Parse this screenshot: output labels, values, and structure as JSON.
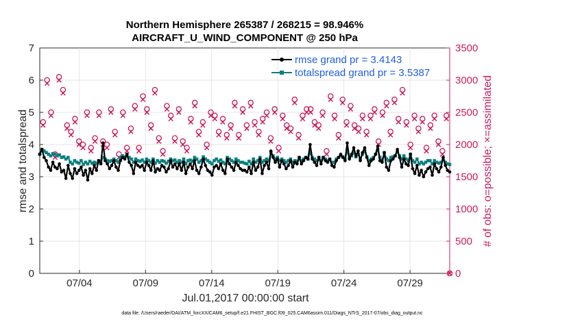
{
  "chart_data": {
    "type": "line",
    "title_line1": "Northern Hemisphere 265387 / 268215 = 98.946%",
    "title_line2": "AIRCRAFT_U_WIND_COMPONENT @ 250 hPa",
    "xlabel": "Jul.01,2017 00:00:00 start",
    "ylabel_left": "rmse and totalspread",
    "ylabel_right": "# of obs: o=possible; ×=assimilated",
    "footnote": "data file: /Users/raeder/DAI/ATM_forcXX/CAM6_setup/f.e21.FHIST_BGC.f09_025.CAM6assim.011/Diags_NTrS_2017-07/obs_diag_output.nc",
    "x_range_days": [
      0,
      31
    ],
    "x_ticks": [
      3,
      8,
      13,
      18,
      23,
      28
    ],
    "x_tick_labels": [
      "07/04",
      "07/09",
      "07/14",
      "07/19",
      "07/24",
      "07/29"
    ],
    "ylim_left": [
      0,
      7
    ],
    "y_ticks_left": [
      "0",
      "1",
      "2",
      "3",
      "4",
      "5",
      "6",
      "7"
    ],
    "ylim_right": [
      0,
      3500
    ],
    "y_ticks_right": [
      "0",
      "500",
      "1000",
      "1500",
      "2000",
      "2500",
      "3000",
      "3500"
    ],
    "series": [
      {
        "name": "rmse",
        "legend": "rmse grand pr = 3.4143",
        "color": "#000000",
        "axis": "left",
        "values": [
          3.7,
          3.85,
          3.6,
          3.5,
          3.3,
          3.2,
          3.45,
          3.3,
          3.25,
          3.4,
          3.15,
          3.2,
          2.95,
          3.35,
          3.1,
          2.95,
          3.25,
          3.1,
          3.2,
          3.3,
          3.05,
          3.2,
          2.9,
          3.25,
          3.1,
          3.35,
          3.2,
          3.5,
          3.4,
          4.05,
          3.5,
          3.4,
          3.25,
          3.35,
          3.5,
          3.3,
          3.2,
          3.5,
          3.6,
          3.55,
          3.7,
          3.45,
          3.35,
          3.1,
          3.45,
          3.35,
          3.3,
          3.35,
          3.2,
          3.45,
          3.35,
          3.2,
          3.5,
          3.15,
          3.25,
          3.2,
          3.35,
          3.3,
          3.15,
          3.25,
          3.5,
          3.3,
          3.4,
          3.25,
          3.4,
          3.2,
          3.45,
          3.1,
          3.3,
          3.4,
          3.25,
          3.5,
          3.2,
          3.1,
          3.3,
          3.55,
          3.35,
          3.2,
          3.15,
          3.05,
          3.3,
          3.35,
          3.25,
          3.4,
          3.2,
          3.1,
          3.55,
          3.4,
          3.3,
          3.2,
          3.45,
          3.35,
          3.25,
          3.2,
          3.2,
          3.15,
          3.3,
          3.1,
          3.45,
          3.2,
          3.3,
          3.55,
          3.1,
          3.35,
          3.45,
          3.25,
          3.8,
          3.6,
          3.45,
          3.55,
          3.3,
          3.5,
          3.4,
          3.25,
          3.35,
          3.5,
          3.3,
          3.45,
          3.4,
          3.6,
          3.4,
          3.5,
          3.6,
          3.55,
          4.0,
          3.55,
          3.45,
          3.35,
          3.6,
          3.4,
          3.6,
          3.5,
          3.45,
          3.55,
          3.35,
          3.3,
          3.5,
          3.6,
          3.7,
          3.6,
          3.5,
          4.05,
          3.55,
          3.7,
          3.9,
          3.65,
          3.8,
          3.5,
          3.75,
          3.9,
          3.6,
          3.35,
          3.5,
          3.55,
          3.7,
          3.95,
          3.5,
          3.45,
          3.75,
          3.3,
          3.2,
          3.5,
          3.55,
          3.65,
          3.85,
          3.6,
          3.3,
          3.55,
          3.4,
          3.35,
          3.7,
          3.25,
          3.1,
          3.35,
          3.05,
          3.2,
          3.0,
          3.15,
          3.25,
          3.3,
          3.05,
          3.4,
          3.25,
          3.15,
          3.3,
          3.6,
          3.35,
          3.2,
          3.15
        ]
      },
      {
        "name": "totalspread",
        "legend": "totalspread grand pr = 3.5387",
        "color": "#0b7f7f",
        "axis": "left",
        "values": [
          3.7,
          3.85,
          3.8,
          3.75,
          3.7,
          3.65,
          3.72,
          3.7,
          3.65,
          3.68,
          3.6,
          3.62,
          3.55,
          3.6,
          3.45,
          3.4,
          3.5,
          3.45,
          3.42,
          3.5,
          3.38,
          3.45,
          3.4,
          3.48,
          3.42,
          3.45,
          3.42,
          3.5,
          3.45,
          3.6,
          3.55,
          3.5,
          3.48,
          3.5,
          3.55,
          3.5,
          3.45,
          3.6,
          3.65,
          3.62,
          3.65,
          3.6,
          3.55,
          3.45,
          3.55,
          3.5,
          3.48,
          3.52,
          3.45,
          3.55,
          3.5,
          3.45,
          3.55,
          3.42,
          3.5,
          3.45,
          3.5,
          3.48,
          3.42,
          3.48,
          3.55,
          3.5,
          3.52,
          3.45,
          3.5,
          3.45,
          3.55,
          3.4,
          3.5,
          3.52,
          3.48,
          3.6,
          3.55,
          3.45,
          3.5,
          3.62,
          3.55,
          3.5,
          3.45,
          3.4,
          3.5,
          3.55,
          3.48,
          3.52,
          3.45,
          3.4,
          3.6,
          3.55,
          3.5,
          3.45,
          3.55,
          3.5,
          3.45,
          3.45,
          3.42,
          3.4,
          3.48,
          3.4,
          3.55,
          3.45,
          3.5,
          3.6,
          3.45,
          3.5,
          3.55,
          3.5,
          3.75,
          3.65,
          3.55,
          3.6,
          3.5,
          3.55,
          3.5,
          3.45,
          3.5,
          3.55,
          3.45,
          3.5,
          3.48,
          3.6,
          3.5,
          3.55,
          3.6,
          3.55,
          3.75,
          3.6,
          3.55,
          3.5,
          3.6,
          3.5,
          3.6,
          3.55,
          3.5,
          3.55,
          3.45,
          3.45,
          3.55,
          3.6,
          3.65,
          3.62,
          3.55,
          3.8,
          3.6,
          3.65,
          3.75,
          3.62,
          3.7,
          3.55,
          3.7,
          3.8,
          3.62,
          3.5,
          3.55,
          3.6,
          3.7,
          3.85,
          3.6,
          3.5,
          3.75,
          3.55,
          3.5,
          3.6,
          3.62,
          3.65,
          3.78,
          3.65,
          3.55,
          3.65,
          3.55,
          3.5,
          3.7,
          3.5,
          3.45,
          3.55,
          3.4,
          3.45,
          3.4,
          3.45,
          3.5,
          3.5,
          3.4,
          3.5,
          3.45,
          3.42,
          3.45,
          3.55,
          3.45,
          3.4,
          3.38
        ]
      },
      {
        "name": "possible",
        "legend": "",
        "color": "#cc1a5c",
        "axis": "right",
        "marker": "o",
        "values": [
          2350,
          3000,
          2500,
          1850,
          3050,
          2850,
          2300,
          2200,
          2400,
          2050,
          2000,
          2500,
          1950,
          2100,
          2500,
          2050,
          2000,
          2550,
          2200,
          1850,
          2500,
          1950,
          2250,
          2600,
          1950,
          2750,
          2550,
          2300,
          2850,
          2100,
          1900,
          2600,
          2450,
          2100,
          2550,
          2050,
          1950,
          2400,
          2650,
          2200,
          2350,
          2000,
          2500,
          2450,
          2200,
          2400,
          2150,
          2300,
          2650,
          2150,
          2550,
          2300,
          2650,
          2350,
          2200,
          2400,
          2500,
          2100,
          2550,
          1950,
          2450,
          2300,
          2250,
          2700,
          2150,
          2450,
          2550,
          2550,
          2350,
          2300,
          2500,
          1900,
          2750,
          2450,
          2150,
          2700,
          2350,
          2600,
          2300,
          2250,
          2450,
          2200,
          2450,
          2550,
          2050,
          2500,
          2650,
          2200,
          2700,
          2400,
          2850,
          2350,
          2000,
          2450,
          2250,
          2400,
          1950,
          2300,
          2450,
          2050,
          1900,
          2450
        ]
      },
      {
        "name": "assimilated",
        "legend": "",
        "color": "#cc1a5c",
        "axis": "right",
        "marker": "x",
        "values": [
          2300,
          2950,
          2450,
          1800,
          3000,
          2800,
          2250,
          2150,
          2350,
          2000,
          1950,
          2450,
          1900,
          2050,
          2450,
          2000,
          1950,
          2500,
          2150,
          1800,
          2450,
          1900,
          2200,
          2550,
          1900,
          2700,
          2500,
          2250,
          2800,
          2050,
          1850,
          2550,
          2400,
          2050,
          2500,
          2000,
          1900,
          2350,
          2600,
          2150,
          2300,
          1950,
          2450,
          2400,
          2150,
          2350,
          2100,
          2250,
          2600,
          2100,
          2500,
          2250,
          2600,
          2300,
          2150,
          2350,
          2450,
          2050,
          2500,
          1900,
          2400,
          2250,
          2200,
          2650,
          2100,
          2400,
          2500,
          2500,
          2300,
          2250,
          2450,
          1850,
          2700,
          2400,
          2100,
          2650,
          2300,
          2550,
          2250,
          2200,
          2400,
          2150,
          2400,
          2500,
          2000,
          2450,
          2600,
          2150,
          2650,
          2350,
          2800,
          2300,
          1950,
          2400,
          2200,
          2350,
          1900,
          2250,
          2400,
          2000,
          1850,
          2400
        ]
      }
    ]
  }
}
